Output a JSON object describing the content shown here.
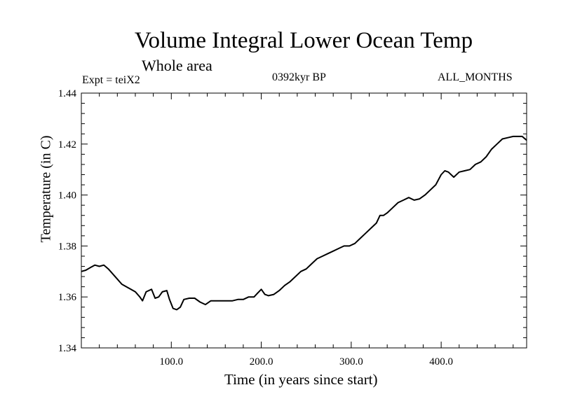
{
  "title": "Volume Integral Lower Ocean Temp",
  "subtitle": "Whole area",
  "experiment": "Expt = teiX2",
  "period": "0392kyr BP",
  "months": "ALL_MONTHS",
  "chart_data": {
    "type": "line",
    "title": "Volume Integral Lower Ocean Temp",
    "subtitle": "Whole area",
    "xlabel": "Time (in years since start)",
    "ylabel": "Temperature (in C)",
    "xlim": [
      0,
      495
    ],
    "ylim": [
      1.34,
      1.44
    ],
    "xticks": [
      100,
      200,
      300,
      400
    ],
    "xtick_labels": [
      "100.0",
      "200.0",
      "300.0",
      "400.0"
    ],
    "yticks": [
      1.34,
      1.36,
      1.38,
      1.4,
      1.42,
      1.44
    ],
    "ytick_labels": [
      "1.34",
      "1.36",
      "1.38",
      "1.40",
      "1.42",
      "1.44"
    ],
    "grid": false,
    "series": [
      {
        "x": [
          0,
          5,
          10,
          15,
          20,
          25,
          30,
          35,
          40,
          45,
          50,
          55,
          60,
          65,
          68,
          72,
          78,
          82,
          86,
          90,
          95,
          98,
          102,
          106,
          110,
          114,
          120,
          126,
          132,
          138,
          144,
          150,
          156,
          162,
          168,
          174,
          180,
          186,
          192,
          196,
          200,
          204,
          208,
          214,
          220,
          226,
          232,
          238,
          244,
          250,
          256,
          262,
          268,
          274,
          280,
          286,
          292,
          298,
          304,
          310,
          316,
          322,
          328,
          332,
          336,
          340,
          346,
          352,
          358,
          364,
          370,
          376,
          382,
          388,
          394,
          400,
          404,
          408,
          414,
          420,
          426,
          432,
          438,
          444,
          450,
          456,
          462,
          468,
          474,
          480,
          486,
          490,
          495
        ],
        "y": [
          1.37,
          1.3705,
          1.3715,
          1.3725,
          1.372,
          1.3725,
          1.371,
          1.369,
          1.367,
          1.365,
          1.364,
          1.363,
          1.362,
          1.36,
          1.3585,
          1.362,
          1.363,
          1.3595,
          1.36,
          1.362,
          1.3625,
          1.359,
          1.3555,
          1.355,
          1.356,
          1.359,
          1.3595,
          1.3595,
          1.358,
          1.357,
          1.3585,
          1.3585,
          1.3585,
          1.3585,
          1.3585,
          1.359,
          1.359,
          1.36,
          1.36,
          1.3615,
          1.363,
          1.361,
          1.3605,
          1.361,
          1.3625,
          1.3645,
          1.366,
          1.368,
          1.37,
          1.371,
          1.373,
          1.375,
          1.376,
          1.377,
          1.378,
          1.379,
          1.38,
          1.38,
          1.381,
          1.383,
          1.385,
          1.387,
          1.389,
          1.392,
          1.392,
          1.393,
          1.395,
          1.397,
          1.398,
          1.399,
          1.398,
          1.3985,
          1.4,
          1.402,
          1.404,
          1.408,
          1.4095,
          1.409,
          1.407,
          1.409,
          1.4095,
          1.41,
          1.412,
          1.413,
          1.415,
          1.418,
          1.42,
          1.422,
          1.4225,
          1.423,
          1.423,
          1.423,
          1.4215
        ]
      }
    ]
  }
}
